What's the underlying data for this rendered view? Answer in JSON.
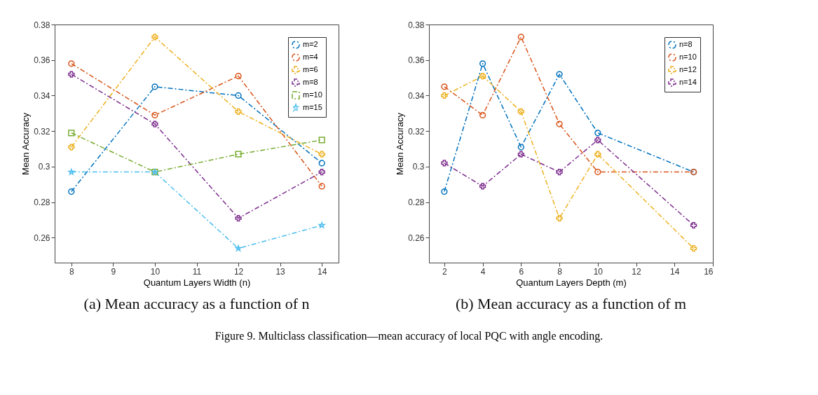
{
  "chart_data": [
    {
      "type": "line",
      "title": "(a) Mean accuracy as a function of n",
      "xlabel": "Quantum Layers Width (n)",
      "ylabel": "Mean Accuracy",
      "x": [
        8,
        10,
        12,
        14
      ],
      "xlim": [
        7.6,
        14.4
      ],
      "xticks": [
        8,
        9,
        10,
        11,
        12,
        13,
        14
      ],
      "ylim": [
        0.246,
        0.38
      ],
      "yticks": [
        0.26,
        0.28,
        0.3,
        0.32,
        0.34,
        0.36,
        0.38
      ],
      "grid": false,
      "legend": "top right",
      "line_style": "dashed",
      "series": [
        {
          "name": "m=2",
          "color": "#0072bd",
          "marker": "circle",
          "values": [
            0.286,
            0.345,
            0.34,
            0.302
          ]
        },
        {
          "name": "m=4",
          "color": "#d95319",
          "marker": "circle",
          "values": [
            0.358,
            0.329,
            0.351,
            0.289
          ]
        },
        {
          "name": "m=6",
          "color": "#edb120",
          "marker": "cross",
          "values": [
            0.311,
            0.373,
            0.331,
            0.307
          ]
        },
        {
          "name": "m=8",
          "color": "#7e2f8e",
          "marker": "cross",
          "values": [
            0.352,
            0.324,
            0.271,
            0.297
          ]
        },
        {
          "name": "m=10",
          "color": "#77ac30",
          "marker": "square",
          "values": [
            0.319,
            0.297,
            0.307,
            0.315
          ]
        },
        {
          "name": "m=15",
          "color": "#4dbeee",
          "marker": "star",
          "values": [
            0.297,
            0.297,
            0.254,
            0.267
          ]
        }
      ]
    },
    {
      "type": "line",
      "title": "(b) Mean accuracy as a function of m",
      "xlabel": "Quantum Layers Depth (m)",
      "ylabel": "Mean Accuracy",
      "x": [
        2,
        4,
        6,
        8,
        10,
        15
      ],
      "xlim": [
        1.2,
        16
      ],
      "xticks": [
        2,
        4,
        6,
        8,
        10,
        12,
        14,
        16
      ],
      "ylim": [
        0.246,
        0.38
      ],
      "yticks": [
        0.26,
        0.28,
        0.3,
        0.32,
        0.34,
        0.36,
        0.38
      ],
      "grid": false,
      "legend": "top right",
      "line_style": "dashed",
      "annotations": [
        "Figure 9. Multiclass classification—mean accuracy of local PQC with angle encoding."
      ],
      "series": [
        {
          "name": "n=8",
          "color": "#0072bd",
          "marker": "circle",
          "values": [
            0.286,
            0.358,
            0.311,
            0.352,
            0.319,
            0.297
          ]
        },
        {
          "name": "n=10",
          "color": "#d95319",
          "marker": "circle",
          "values": [
            0.345,
            0.329,
            0.373,
            0.324,
            0.297,
            0.297
          ]
        },
        {
          "name": "n=12",
          "color": "#edb120",
          "marker": "cross",
          "values": [
            0.34,
            0.351,
            0.331,
            0.271,
            0.307,
            0.254
          ]
        },
        {
          "name": "n=14",
          "color": "#7e2f8e",
          "marker": "cross",
          "values": [
            0.302,
            0.289,
            0.307,
            0.297,
            0.315,
            0.267
          ]
        }
      ]
    }
  ]
}
